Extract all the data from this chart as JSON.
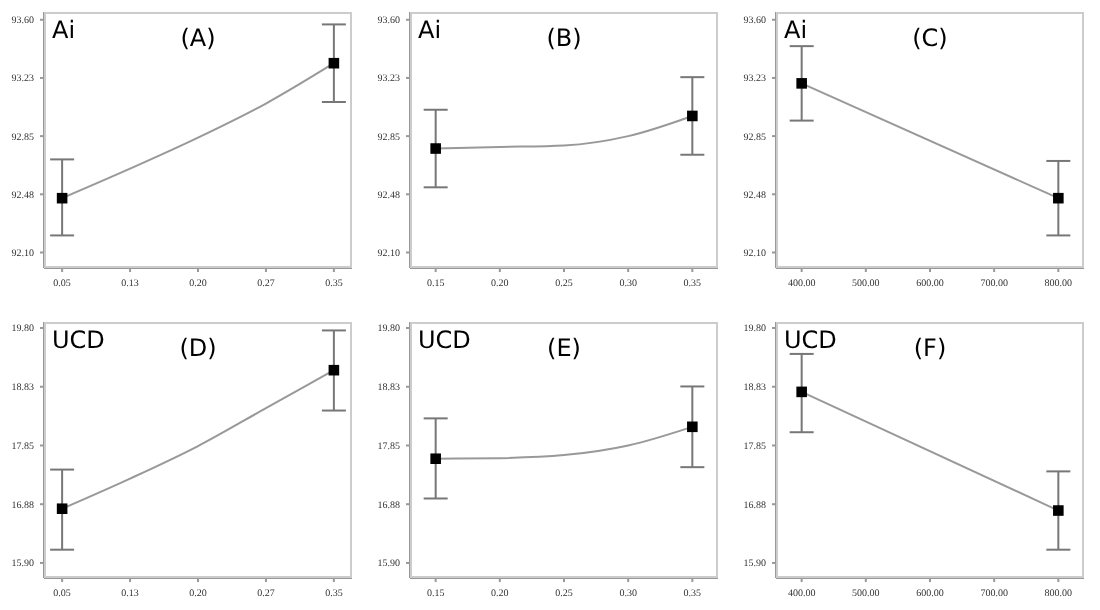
{
  "chart_data": [
    {
      "type": "line",
      "title": "(A)",
      "annotations": [
        "Ai"
      ],
      "xlim": [
        0.03,
        0.37
      ],
      "xticks": [
        0.05,
        {
          "value": 0.125,
          "label": "0.13"
        },
        {
          "value": 0.2,
          "label": "0.20"
        },
        {
          "value": 0.275,
          "label": "0.27"
        },
        0.35
      ],
      "ylim": [
        92.0,
        93.65
      ],
      "yticks": [
        {
          "value": 92.1,
          "label": "92.10"
        },
        {
          "value": 92.475,
          "label": "92.48"
        },
        {
          "value": 92.85,
          "label": "92.85"
        },
        {
          "value": 93.225,
          "label": "93.23"
        },
        {
          "value": 93.6,
          "label": "93.60"
        }
      ],
      "grid": false,
      "series": [
        {
          "type": "line",
          "x": [
            0.05,
            0.125,
            0.2,
            0.275,
            0.35
          ],
          "values": [
            92.45,
            92.64,
            92.84,
            93.06,
            93.32
          ],
          "color": "#999999",
          "marker": "none"
        },
        {
          "type": "scatter",
          "x": [
            0.05,
            0.35
          ],
          "values": [
            92.45,
            93.32
          ],
          "errors": [
            [
              92.21,
              92.7
            ],
            [
              93.07,
              93.57
            ]
          ],
          "color": "#000000",
          "marker": "square"
        }
      ]
    },
    {
      "type": "line",
      "title": "(B)",
      "annotations": [
        "Ai"
      ],
      "xlim": [
        0.13,
        0.37
      ],
      "xticks": [
        0.15,
        {
          "value": 0.2,
          "label": "0.20"
        },
        0.25,
        {
          "value": 0.3,
          "label": "0.30"
        },
        0.35
      ],
      "ylim": [
        92.0,
        93.65
      ],
      "yticks": [
        {
          "value": 92.1,
          "label": "92.10"
        },
        {
          "value": 92.475,
          "label": "92.48"
        },
        {
          "value": 92.85,
          "label": "92.85"
        },
        {
          "value": 93.225,
          "label": "93.23"
        },
        {
          "value": 93.6,
          "label": "93.60"
        }
      ],
      "grid": false,
      "series": [
        {
          "type": "line",
          "x": [
            0.15,
            0.2,
            0.25,
            0.3,
            0.35
          ],
          "values": [
            92.77,
            92.78,
            92.79,
            92.85,
            92.98
          ],
          "color": "#999999",
          "marker": "none"
        },
        {
          "type": "scatter",
          "x": [
            0.15,
            0.35
          ],
          "values": [
            92.77,
            92.98
          ],
          "errors": [
            [
              92.52,
              93.02
            ],
            [
              92.73,
              93.23
            ]
          ],
          "color": "#000000",
          "marker": "square"
        }
      ]
    },
    {
      "type": "line",
      "title": "(C)",
      "annotations": [
        "Ai"
      ],
      "xlim": [
        360,
        840
      ],
      "xticks": [
        {
          "value": 400,
          "label": "400.00"
        },
        {
          "value": 500,
          "label": "500.00"
        },
        {
          "value": 600,
          "label": "600.00"
        },
        {
          "value": 700,
          "label": "700.00"
        },
        {
          "value": 800,
          "label": "800.00"
        }
      ],
      "ylim": [
        92.0,
        93.65
      ],
      "yticks": [
        {
          "value": 92.1,
          "label": "92.10"
        },
        {
          "value": 92.475,
          "label": "92.48"
        },
        {
          "value": 92.85,
          "label": "92.85"
        },
        {
          "value": 93.225,
          "label": "93.23"
        },
        {
          "value": 93.6,
          "label": "93.60"
        }
      ],
      "grid": false,
      "series": [
        {
          "type": "line",
          "x": [
            400,
            800
          ],
          "values": [
            93.19,
            92.45
          ],
          "color": "#999999",
          "marker": "none"
        },
        {
          "type": "scatter",
          "x": [
            400,
            800
          ],
          "values": [
            93.19,
            92.45
          ],
          "errors": [
            [
              92.95,
              93.43
            ],
            [
              92.21,
              92.69
            ]
          ],
          "color": "#000000",
          "marker": "square"
        }
      ]
    },
    {
      "type": "line",
      "title": "(D)",
      "annotations": [
        "UCD"
      ],
      "xlim": [
        0.03,
        0.37
      ],
      "xticks": [
        0.05,
        {
          "value": 0.125,
          "label": "0.13"
        },
        {
          "value": 0.2,
          "label": "0.20"
        },
        {
          "value": 0.275,
          "label": "0.27"
        },
        0.35
      ],
      "ylim": [
        15.65,
        19.9
      ],
      "yticks": [
        {
          "value": 15.9,
          "label": "15.90"
        },
        {
          "value": 16.875,
          "label": "16.88"
        },
        {
          "value": 17.85,
          "label": "17.85"
        },
        {
          "value": 18.825,
          "label": "18.83"
        },
        {
          "value": 19.8,
          "label": "19.80"
        }
      ],
      "grid": false,
      "series": [
        {
          "type": "line",
          "x": [
            0.05,
            0.125,
            0.2,
            0.275,
            0.35
          ],
          "values": [
            16.8,
            17.3,
            17.84,
            18.47,
            19.1
          ],
          "color": "#999999",
          "marker": "none"
        },
        {
          "type": "scatter",
          "x": [
            0.05,
            0.35
          ],
          "values": [
            16.8,
            19.1
          ],
          "errors": [
            [
              16.12,
              17.45
            ],
            [
              18.43,
              19.76
            ]
          ],
          "color": "#000000",
          "marker": "square"
        }
      ]
    },
    {
      "type": "line",
      "title": "(E)",
      "annotations": [
        "UCD"
      ],
      "xlim": [
        0.13,
        0.37
      ],
      "xticks": [
        0.15,
        {
          "value": 0.2,
          "label": "0.20"
        },
        0.25,
        {
          "value": 0.3,
          "label": "0.30"
        },
        0.35
      ],
      "ylim": [
        15.65,
        19.9
      ],
      "yticks": [
        {
          "value": 15.9,
          "label": "15.90"
        },
        {
          "value": 16.875,
          "label": "16.88"
        },
        {
          "value": 17.85,
          "label": "17.85"
        },
        {
          "value": 18.825,
          "label": "18.83"
        },
        {
          "value": 19.8,
          "label": "19.80"
        }
      ],
      "grid": false,
      "series": [
        {
          "type": "line",
          "x": [
            0.15,
            0.2,
            0.25,
            0.3,
            0.35
          ],
          "values": [
            17.63,
            17.64,
            17.69,
            17.85,
            18.16
          ],
          "color": "#999999",
          "marker": "none"
        },
        {
          "type": "scatter",
          "x": [
            0.15,
            0.35
          ],
          "values": [
            17.63,
            18.16
          ],
          "errors": [
            [
              16.97,
              18.3
            ],
            [
              17.49,
              18.83
            ]
          ],
          "color": "#000000",
          "marker": "square"
        }
      ]
    },
    {
      "type": "line",
      "title": "(F)",
      "annotations": [
        "UCD"
      ],
      "xlim": [
        360,
        840
      ],
      "xticks": [
        {
          "value": 400,
          "label": "400.00"
        },
        {
          "value": 500,
          "label": "500.00"
        },
        {
          "value": 600,
          "label": "600.00"
        },
        {
          "value": 700,
          "label": "700.00"
        },
        {
          "value": 800,
          "label": "800.00"
        }
      ],
      "ylim": [
        15.65,
        19.9
      ],
      "yticks": [
        {
          "value": 15.9,
          "label": "15.90"
        },
        {
          "value": 16.875,
          "label": "16.88"
        },
        {
          "value": 17.85,
          "label": "17.85"
        },
        {
          "value": 18.825,
          "label": "18.83"
        },
        {
          "value": 19.8,
          "label": "19.80"
        }
      ],
      "grid": false,
      "series": [
        {
          "type": "line",
          "x": [
            400,
            800
          ],
          "values": [
            18.74,
            16.77
          ],
          "color": "#999999",
          "marker": "none"
        },
        {
          "type": "scatter",
          "x": [
            400,
            800
          ],
          "values": [
            18.74,
            16.77
          ],
          "errors": [
            [
              18.07,
              19.37
            ],
            [
              16.12,
              17.42
            ]
          ],
          "color": "#000000",
          "marker": "square"
        }
      ]
    }
  ]
}
